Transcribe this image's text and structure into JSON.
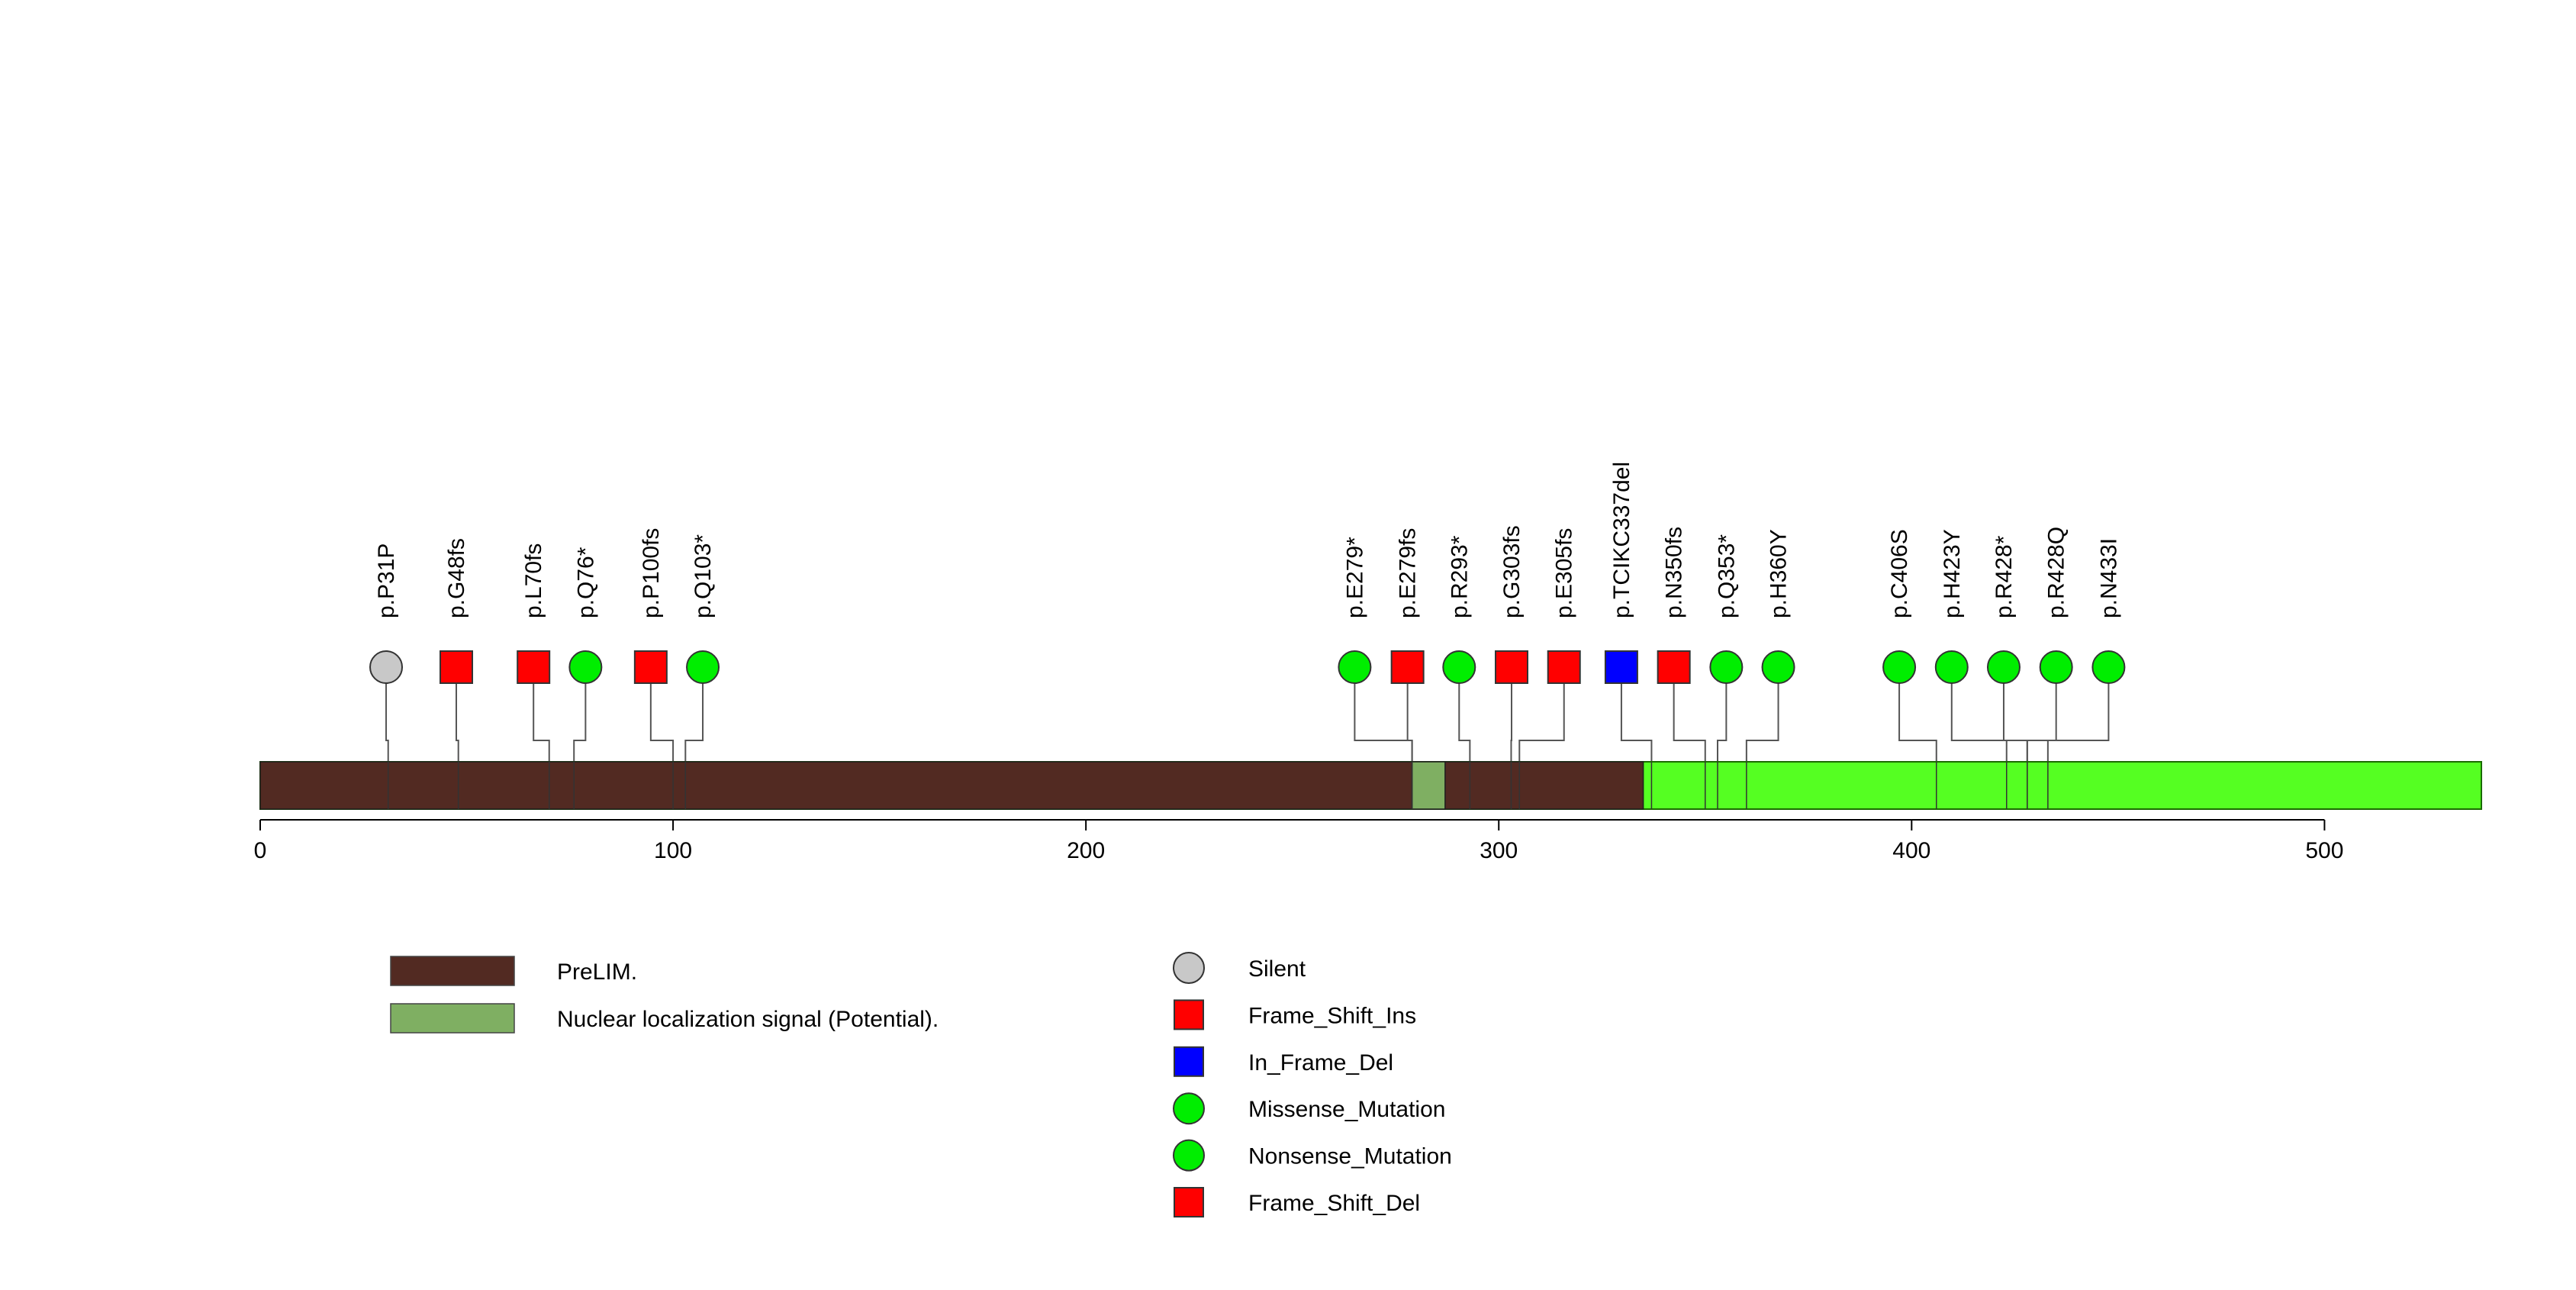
{
  "chart_data": {
    "type": "lollipop",
    "protein_length": 538,
    "xlim": [
      0,
      538
    ],
    "x_ticks": [
      0,
      100,
      200,
      300,
      400,
      500
    ],
    "backbone_color": "#55ff22",
    "domains": [
      {
        "name": "PreLIM.",
        "start": 0,
        "end": 335,
        "color": "#522a22"
      },
      {
        "name": "Nuclear localization signal (Potential).",
        "start": 279,
        "end": 287,
        "color": "#7faf62"
      }
    ],
    "mutation_types": [
      {
        "name": "Silent",
        "shape": "circle",
        "color": "#c8c8c8"
      },
      {
        "name": "Frame_Shift_Ins",
        "shape": "square",
        "color": "#ff0000"
      },
      {
        "name": "In_Frame_Del",
        "shape": "square",
        "color": "#0000ff"
      },
      {
        "name": "Missense_Mutation",
        "shape": "circle",
        "color": "#00ee00"
      },
      {
        "name": "Nonsense_Mutation",
        "shape": "circle",
        "color": "#00ee00"
      },
      {
        "name": "Frame_Shift_Del",
        "shape": "square",
        "color": "#ff0000"
      }
    ],
    "mutations": [
      {
        "label": "p.P31P",
        "position": 31,
        "display_position": 30.5,
        "type": "Silent"
      },
      {
        "label": "p.G48fs",
        "position": 48,
        "display_position": 47.5,
        "type": "Frame_Shift_Ins"
      },
      {
        "label": "p.L70fs",
        "position": 70,
        "display_position": 66.2,
        "type": "Frame_Shift_Ins"
      },
      {
        "label": "p.Q76*",
        "position": 76,
        "display_position": 78.8,
        "type": "Nonsense_Mutation"
      },
      {
        "label": "p.P100fs",
        "position": 100,
        "display_position": 94.6,
        "type": "Frame_Shift_Ins"
      },
      {
        "label": "p.Q103*",
        "position": 103,
        "display_position": 107.2,
        "type": "Nonsense_Mutation"
      },
      {
        "label": "p.E279*",
        "position": 279,
        "display_position": 265.1,
        "type": "Nonsense_Mutation"
      },
      {
        "label": "p.E279fs",
        "position": 279,
        "display_position": 277.9,
        "type": "Frame_Shift_Ins"
      },
      {
        "label": "p.R293*",
        "position": 293,
        "display_position": 290.4,
        "type": "Nonsense_Mutation"
      },
      {
        "label": "p.G303fs",
        "position": 303,
        "display_position": 303.1,
        "type": "Frame_Shift_Del"
      },
      {
        "label": "p.E305fs",
        "position": 305,
        "display_position": 315.8,
        "type": "Frame_Shift_Del"
      },
      {
        "label": "p.TCIKC337del",
        "position": 337,
        "display_position": 329.7,
        "type": "In_Frame_Del"
      },
      {
        "label": "p.N350fs",
        "position": 350,
        "display_position": 342.4,
        "type": "Frame_Shift_Del"
      },
      {
        "label": "p.Q353*",
        "position": 353,
        "display_position": 355.1,
        "type": "Nonsense_Mutation"
      },
      {
        "label": "p.H360Y",
        "position": 360,
        "display_position": 367.7,
        "type": "Missense_Mutation"
      },
      {
        "label": "p.C406S",
        "position": 406,
        "display_position": 397.0,
        "type": "Missense_Mutation"
      },
      {
        "label": "p.H423Y",
        "position": 423,
        "display_position": 409.7,
        "type": "Missense_Mutation"
      },
      {
        "label": "p.R428*",
        "position": 428,
        "display_position": 422.3,
        "type": "Nonsense_Mutation"
      },
      {
        "label": "p.R428Q",
        "position": 428,
        "display_position": 435.0,
        "type": "Missense_Mutation"
      },
      {
        "label": "p.N433I",
        "position": 433,
        "display_position": 447.7,
        "type": "Missense_Mutation"
      }
    ]
  }
}
